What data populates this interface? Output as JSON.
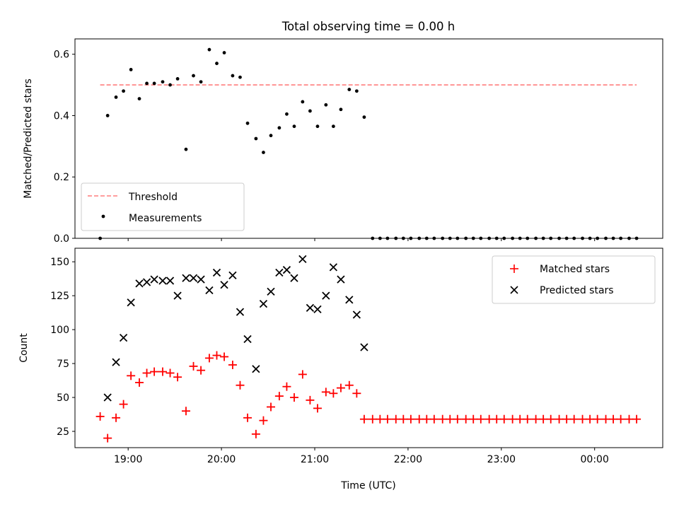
{
  "chart_data": [
    {
      "type": "scatter",
      "title": "Total observing time = 0.00 h",
      "ylabel": "Matched/Predicted stars",
      "xlabel": "",
      "ylim": [
        0,
        0.65
      ],
      "yticks": [
        0.0,
        0.2,
        0.4,
        0.6
      ],
      "ytick_labels": [
        "0.0",
        "0.2",
        "0.4",
        "0.6"
      ],
      "threshold": {
        "name": "Threshold",
        "value": 0.5,
        "x_range": [
          18.7,
          24.45
        ],
        "color": "#ff7f7f"
      },
      "legend": {
        "position": "lower-left",
        "entries": [
          "Threshold",
          "Measurements"
        ]
      },
      "series": [
        {
          "name": "Measurements",
          "color": "#000000",
          "marker": "dot",
          "x": [
            18.7,
            18.78,
            18.87,
            18.95,
            19.03,
            19.12,
            19.2,
            19.28,
            19.37,
            19.45,
            19.53,
            19.62,
            19.7,
            19.78,
            19.87,
            19.95,
            20.03,
            20.12,
            20.2,
            20.28,
            20.37,
            20.45,
            20.53,
            20.62,
            20.7,
            20.78,
            20.87,
            20.95,
            21.03,
            21.12,
            21.2,
            21.28,
            21.37,
            21.45,
            21.53,
            21.62,
            21.7,
            21.78,
            21.87,
            21.95,
            22.03,
            22.12,
            22.2,
            22.28,
            22.37,
            22.45,
            22.53,
            22.62,
            22.7,
            22.78,
            22.87,
            22.95,
            23.03,
            23.12,
            23.2,
            23.28,
            23.37,
            23.45,
            23.53,
            23.62,
            23.7,
            23.78,
            23.87,
            23.95,
            24.03,
            24.12,
            24.2,
            24.28,
            24.37,
            24.45
          ],
          "y": [
            0.0,
            0.4,
            0.46,
            0.48,
            0.55,
            0.455,
            0.505,
            0.505,
            0.51,
            0.5,
            0.52,
            0.29,
            0.53,
            0.51,
            0.615,
            0.57,
            0.605,
            0.53,
            0.525,
            0.375,
            0.325,
            0.28,
            0.335,
            0.36,
            0.405,
            0.365,
            0.445,
            0.415,
            0.365,
            0.435,
            0.365,
            0.42,
            0.485,
            0.48,
            0.395,
            0.0,
            0.0,
            0.0,
            0.0,
            0.0,
            0.0,
            0.0,
            0.0,
            0.0,
            0.0,
            0.0,
            0.0,
            0.0,
            0.0,
            0.0,
            0.0,
            0.0,
            0.0,
            0.0,
            0.0,
            0.0,
            0.0,
            0.0,
            0.0,
            0.0,
            0.0,
            0.0,
            0.0,
            0.0,
            0.0,
            0.0,
            0.0,
            0.0,
            0.0,
            0.0
          ]
        }
      ]
    },
    {
      "type": "scatter",
      "xlabel": "Time (UTC)",
      "ylabel": "Count",
      "ylim": [
        13,
        160
      ],
      "yticks": [
        25,
        50,
        75,
        100,
        125,
        150
      ],
      "ytick_labels": [
        "25",
        "50",
        "75",
        "100",
        "125",
        "150"
      ],
      "xlim": [
        18.43,
        24.73
      ],
      "xticks": [
        19,
        20,
        21,
        22,
        23,
        24
      ],
      "xtick_labels": [
        "19:00",
        "20:00",
        "21:00",
        "22:00",
        "23:00",
        "00:00"
      ],
      "legend": {
        "position": "top-right",
        "entries": [
          "Matched stars",
          "Predicted stars"
        ]
      },
      "series": [
        {
          "name": "Matched stars",
          "color": "#ff0000",
          "marker": "plus",
          "x": [
            18.7,
            18.78,
            18.87,
            18.95,
            19.03,
            19.12,
            19.2,
            19.28,
            19.37,
            19.45,
            19.53,
            19.62,
            19.7,
            19.78,
            19.87,
            19.95,
            20.03,
            20.12,
            20.2,
            20.28,
            20.37,
            20.45,
            20.53,
            20.62,
            20.7,
            20.78,
            20.87,
            20.95,
            21.03,
            21.12,
            21.2,
            21.28,
            21.37,
            21.45,
            21.53,
            21.62,
            21.7,
            21.78,
            21.87,
            21.95,
            22.03,
            22.12,
            22.2,
            22.28,
            22.37,
            22.45,
            22.53,
            22.62,
            22.7,
            22.78,
            22.87,
            22.95,
            23.03,
            23.12,
            23.2,
            23.28,
            23.37,
            23.45,
            23.53,
            23.62,
            23.7,
            23.78,
            23.87,
            23.95,
            24.03,
            24.12,
            24.2,
            24.28,
            24.37,
            24.45
          ],
          "y": [
            36,
            20,
            35,
            45,
            66,
            61,
            68,
            69,
            69,
            68,
            65,
            40,
            73,
            70,
            79,
            81,
            80,
            74,
            59,
            35,
            23,
            33,
            43,
            51,
            58,
            50,
            67,
            48,
            42,
            54,
            53,
            57,
            59,
            53,
            34,
            34,
            34,
            34,
            34,
            34,
            34,
            34,
            34,
            34,
            34,
            34,
            34,
            34,
            34,
            34,
            34,
            34,
            34,
            34,
            34,
            34,
            34,
            34,
            34,
            34,
            34,
            34,
            34,
            34,
            34,
            34,
            34,
            34,
            34,
            34
          ]
        },
        {
          "name": "Predicted stars",
          "color": "#000000",
          "marker": "x",
          "x": [
            18.78,
            18.87,
            18.95,
            19.03,
            19.12,
            19.2,
            19.28,
            19.37,
            19.45,
            19.53,
            19.62,
            19.7,
            19.78,
            19.87,
            19.95,
            20.03,
            20.12,
            20.2,
            20.28,
            20.37,
            20.45,
            20.53,
            20.62,
            20.7,
            20.78,
            20.87,
            20.95,
            21.03,
            21.12,
            21.2,
            21.28,
            21.37,
            21.45,
            21.53
          ],
          "y": [
            50,
            76,
            94,
            120,
            134,
            135,
            137,
            136,
            136,
            125,
            138,
            138,
            137,
            129,
            142,
            133,
            140,
            113,
            93,
            71,
            119,
            128,
            142,
            144,
            138,
            152,
            116,
            115,
            125,
            146,
            137,
            122,
            111,
            87
          ]
        }
      ]
    }
  ]
}
